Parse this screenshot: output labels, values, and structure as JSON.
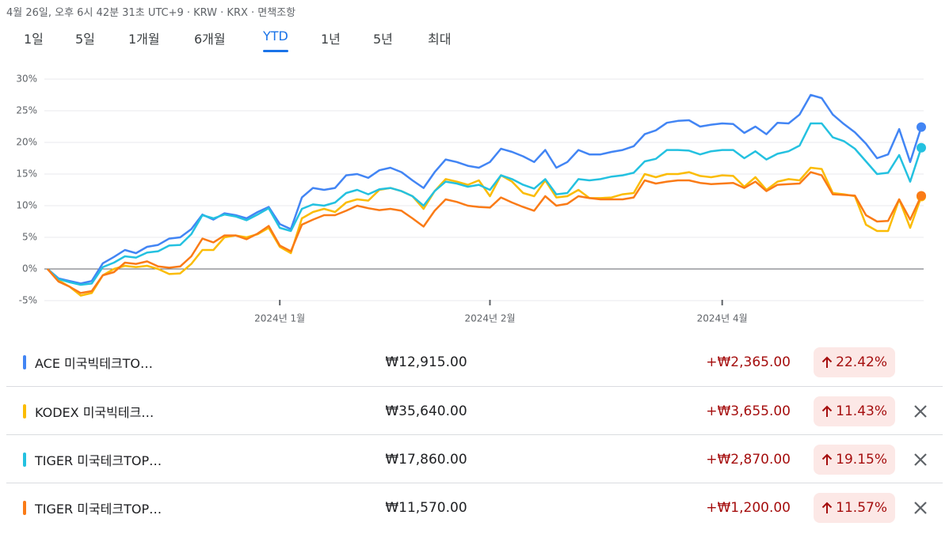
{
  "header": {
    "meta": "4월 26일, 오후 6시 42분 31초 UTC+9 · KRW · KRX · 면책조항"
  },
  "tabs": [
    {
      "label": "1일",
      "selected": false
    },
    {
      "label": "5일",
      "selected": false
    },
    {
      "label": "1개월",
      "selected": false
    },
    {
      "label": "6개월",
      "selected": false
    },
    {
      "label": "YTD",
      "selected": true
    },
    {
      "label": "1년",
      "selected": false
    },
    {
      "label": "5년",
      "selected": false
    },
    {
      "label": "최대",
      "selected": false
    }
  ],
  "chart_data": {
    "type": "line",
    "categories": [
      null,
      null,
      null,
      null,
      null,
      null,
      null,
      null,
      null,
      null,
      null,
      null,
      null,
      null,
      null,
      null,
      null,
      null,
      null,
      null,
      null,
      "2024년 1월",
      null,
      null,
      null,
      null,
      null,
      null,
      null,
      null,
      null,
      null,
      null,
      null,
      null,
      null,
      null,
      null,
      null,
      null,
      "2024년 2월",
      null,
      null,
      null,
      null,
      null,
      null,
      null,
      null,
      null,
      null,
      null,
      null,
      null,
      null,
      null,
      null,
      null,
      null,
      null,
      null,
      "2024년 4월",
      null,
      null,
      null,
      null,
      null,
      null,
      null,
      null,
      null,
      null,
      null,
      null,
      null,
      null,
      null,
      null,
      null,
      null
    ],
    "ylim": [
      -5,
      30
    ],
    "yticks": [
      {
        "value": 30,
        "label": "30%"
      },
      {
        "value": 25,
        "label": "25%"
      },
      {
        "value": 20,
        "label": "20%"
      },
      {
        "value": 15,
        "label": "15%"
      },
      {
        "value": 10,
        "label": "10%"
      },
      {
        "value": 5,
        "label": "5%"
      },
      {
        "value": 0,
        "label": "0%"
      },
      {
        "value": -5,
        "label": "-5%"
      }
    ],
    "grid": true,
    "series": [
      {
        "name": "ACE 미국빅테크TO…",
        "color": "#4285f4",
        "values": [
          0,
          -1.5,
          -1.9,
          -2.3,
          -1.9,
          0.9,
          1.9,
          3.0,
          2.5,
          3.5,
          3.8,
          4.8,
          5.0,
          6.3,
          8.6,
          7.8,
          8.8,
          8.5,
          8.0,
          9.0,
          9.8,
          7.1,
          6.3,
          11.3,
          12.8,
          12.5,
          12.8,
          14.8,
          15.0,
          14.4,
          15.6,
          16.0,
          15.3,
          14.0,
          12.8,
          15.3,
          17.3,
          16.9,
          16.3,
          16.0,
          16.9,
          19.0,
          18.5,
          17.8,
          16.9,
          18.8,
          16.0,
          16.9,
          18.8,
          18.1,
          18.1,
          18.5,
          18.8,
          19.4,
          21.3,
          21.9,
          23.1,
          23.4,
          23.5,
          22.5,
          22.8,
          23.0,
          22.9,
          21.5,
          22.5,
          21.3,
          23.1,
          23.0,
          24.4,
          27.5,
          27.0,
          24.4,
          22.9,
          21.6,
          19.8,
          17.5,
          18.1,
          22.1,
          16.9,
          22.42
        ]
      },
      {
        "name": "KODEX 미국빅테크…",
        "color": "#fbbc04",
        "values": [
          0,
          -1.8,
          -2.8,
          -4.2,
          -3.8,
          -1.0,
          0.0,
          0.5,
          0.3,
          0.5,
          0.0,
          -0.8,
          -0.7,
          0.8,
          3.0,
          3.0,
          5.0,
          5.3,
          5.0,
          5.5,
          6.5,
          3.5,
          2.5,
          8.0,
          9.0,
          9.5,
          9.0,
          10.5,
          11.0,
          10.8,
          12.5,
          12.8,
          12.3,
          11.5,
          9.5,
          12.3,
          14.2,
          13.8,
          13.3,
          14.0,
          11.5,
          14.8,
          13.8,
          12.0,
          11.5,
          14.0,
          11.3,
          11.5,
          12.5,
          11.2,
          11.2,
          11.3,
          11.8,
          12.0,
          15.0,
          14.5,
          15.0,
          15.0,
          15.3,
          14.7,
          14.5,
          14.8,
          14.7,
          13.0,
          14.5,
          12.5,
          13.8,
          14.2,
          14.0,
          16.0,
          15.8,
          12.0,
          11.8,
          11.5,
          7.0,
          6.0,
          6.0,
          11.0,
          6.5,
          11.43
        ]
      },
      {
        "name": "TIGER 미국테크TOP…",
        "color": "#24c1e0",
        "values": [
          0,
          -1.6,
          -2.1,
          -2.5,
          -2.3,
          0.3,
          1.0,
          2.0,
          1.8,
          2.6,
          2.8,
          3.7,
          3.8,
          5.5,
          8.5,
          8.0,
          8.6,
          8.3,
          7.7,
          8.6,
          9.6,
          6.5,
          6.0,
          9.5,
          10.2,
          10.0,
          10.5,
          12.0,
          12.5,
          11.8,
          12.6,
          12.8,
          12.3,
          11.5,
          10.0,
          12.3,
          13.8,
          13.5,
          13.0,
          13.3,
          12.5,
          14.8,
          14.2,
          13.3,
          12.7,
          14.2,
          11.8,
          12.0,
          14.2,
          14.0,
          14.2,
          14.6,
          14.8,
          15.2,
          17.0,
          17.4,
          18.8,
          18.8,
          18.7,
          18.1,
          18.6,
          18.8,
          18.8,
          17.5,
          18.6,
          17.3,
          18.2,
          18.6,
          19.5,
          23.0,
          23.0,
          20.8,
          20.2,
          19.0,
          17.0,
          15.0,
          15.2,
          18.0,
          13.8,
          19.15
        ]
      },
      {
        "name": "TIGER 미국테크TOP…",
        "color": "#fa7b17",
        "values": [
          0,
          -2.0,
          -2.8,
          -3.8,
          -3.5,
          -1.0,
          -0.5,
          1.0,
          0.8,
          1.2,
          0.4,
          0.2,
          0.4,
          2.0,
          4.8,
          4.2,
          5.3,
          5.3,
          4.7,
          5.6,
          6.8,
          3.7,
          2.8,
          7.0,
          7.8,
          8.5,
          8.5,
          9.2,
          10.0,
          9.6,
          9.3,
          9.5,
          9.2,
          8.0,
          6.7,
          9.2,
          11.0,
          10.6,
          10.0,
          9.8,
          9.7,
          11.3,
          10.5,
          9.8,
          9.2,
          11.5,
          10.0,
          10.3,
          11.5,
          11.2,
          11.0,
          11.0,
          11.0,
          11.3,
          14.0,
          13.5,
          13.8,
          14.0,
          14.0,
          13.6,
          13.4,
          13.5,
          13.6,
          12.8,
          13.8,
          12.3,
          13.3,
          13.4,
          13.5,
          15.3,
          14.8,
          11.8,
          11.7,
          11.6,
          8.5,
          7.5,
          7.6,
          11.0,
          7.8,
          11.57
        ]
      }
    ]
  },
  "holdings": [
    {
      "price": "₩12,915.00",
      "change": "+₩2,365.00",
      "change_pct": "22.42%",
      "removable": false
    },
    {
      "price": "₩35,640.00",
      "change": "+₩3,655.00",
      "change_pct": "11.43%",
      "removable": true
    },
    {
      "price": "₩17,860.00",
      "change": "+₩2,870.00",
      "change_pct": "19.15%",
      "removable": true
    },
    {
      "price": "₩11,570.00",
      "change": "+₩1,200.00",
      "change_pct": "11.57%",
      "removable": true
    }
  ]
}
